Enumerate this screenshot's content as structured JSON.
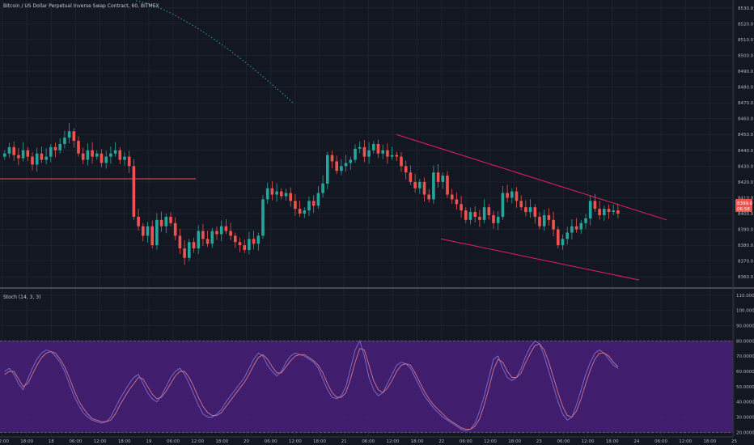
{
  "header": {
    "symbol_title": "Bitcoin / US Dollar Perpetual Inverse Swap Contract, 60, BITMEX"
  },
  "indicator": {
    "label": "Stoch (14, 3, 3)"
  },
  "price_badge": {
    "price": "8399.0",
    "countdown": "06:58",
    "color": "#ef5350"
  },
  "colors": {
    "bg": "#131722",
    "grid": "#1e222d",
    "up": "#26a69a",
    "down": "#ef5350",
    "trend": "#e91e63",
    "stoch_band": "#4a1e7a",
    "stoch_k": "#7e6fd1",
    "stoch_d": "#d07a8a",
    "dotted": "#26a69a"
  },
  "chart_data": [
    {
      "type": "candlestick",
      "title": "",
      "ylim": [
        8355,
        8535
      ],
      "y_ticks": [
        "8530.0",
        "8520.0",
        "8510.0",
        "8500.0",
        "8490.0",
        "8480.0",
        "8470.0",
        "8460.0",
        "8450.0",
        "8440.0",
        "8430.0",
        "8420.0",
        "8410.0",
        "8400.0",
        "8390.0",
        "8380.0",
        "8370.0",
        "8360.0"
      ],
      "x_labels": [
        "12:00",
        "18:00",
        "18",
        "06:00",
        "12:00",
        "18:00",
        "19",
        "06:00",
        "12:00",
        "18:00",
        "20",
        "06:00",
        "12:00",
        "18:00",
        "21",
        "06:00",
        "12:00",
        "18:00",
        "22",
        "06:00",
        "12:00",
        "18:00",
        "23",
        "06:00",
        "12:00",
        "18:00",
        "24",
        "06:00",
        "12:00",
        "18:00",
        "25"
      ],
      "closes": [
        8438,
        8442,
        8437,
        8435,
        8440,
        8436,
        8431,
        8438,
        8434,
        8436,
        8442,
        8440,
        8444,
        8448,
        8452,
        8446,
        8438,
        8434,
        8440,
        8436,
        8438,
        8432,
        8436,
        8438,
        8440,
        8434,
        8436,
        8430,
        8398,
        8392,
        8386,
        8392,
        8380,
        8396,
        8392,
        8398,
        8394,
        8386,
        8378,
        8372,
        8382,
        8378,
        8389,
        8384,
        8381,
        8389,
        8387,
        8392,
        8389,
        8386,
        8382,
        8380,
        8377,
        8384,
        8381,
        8386,
        8409,
        8416,
        8412,
        8414,
        8411,
        8413,
        8408,
        8403,
        8400,
        8402,
        8408,
        8405,
        8413,
        8419,
        8437,
        8433,
        8427,
        8430,
        8432,
        8434,
        8441,
        8442,
        8436,
        8440,
        8444,
        8438,
        8440,
        8436,
        8437,
        8436,
        8430,
        8426,
        8420,
        8416,
        8420,
        8412,
        8409,
        8426,
        8420,
        8424,
        8412,
        8409,
        8406,
        8402,
        8396,
        8401,
        8398,
        8396,
        8404,
        8399,
        8394,
        8398,
        8413,
        8410,
        8414,
        8408,
        8404,
        8401,
        8404,
        8398,
        8392,
        8399,
        8396,
        8390,
        8380,
        8384,
        8388,
        8392,
        8390,
        8394,
        8397,
        8408,
        8403,
        8399,
        8403,
        8401,
        8402,
        8400
      ]
    },
    {
      "type": "line",
      "title": "Stoch (14, 3, 3)",
      "ylim": [
        17,
        112
      ],
      "y_ticks": [
        "110.0000",
        "100.0000",
        "90.0000",
        "80.0000",
        "70.0000",
        "60.0000",
        "50.0000",
        "40.0000",
        "30.0000",
        "20.0000"
      ],
      "band": [
        20,
        80
      ],
      "series": [
        {
          "values": [
            60,
            62,
            58,
            52,
            48,
            55,
            62,
            68,
            72,
            74,
            73,
            70,
            66,
            60,
            52,
            44,
            38,
            33,
            30,
            28,
            27,
            26,
            27,
            30,
            36,
            42,
            47,
            52,
            56,
            58,
            52,
            46,
            42,
            40,
            44,
            50,
            56,
            60,
            62,
            58,
            52,
            45,
            38,
            32,
            30,
            30,
            32,
            35,
            40,
            44,
            48,
            52,
            56,
            62,
            68,
            72,
            70,
            64,
            60,
            57,
            60,
            66,
            70,
            72,
            71,
            70,
            68,
            66,
            62,
            55,
            48,
            43,
            42,
            44,
            50,
            62,
            74,
            80,
            70,
            56,
            48,
            44,
            46,
            52,
            58,
            64,
            66,
            65,
            62,
            56,
            50,
            44,
            40,
            36,
            33,
            30,
            28,
            26,
            24,
            22,
            21,
            22,
            26,
            34,
            44,
            56,
            68,
            70,
            62,
            56,
            54,
            56,
            62,
            70,
            76,
            80,
            78,
            70,
            60,
            50,
            40,
            32,
            28,
            30,
            38,
            48,
            58,
            66,
            72,
            74,
            72,
            68,
            64,
            62
          ]
        },
        {
          "values": [
            58,
            60,
            60,
            55,
            50,
            52,
            58,
            64,
            69,
            72,
            73,
            72,
            68,
            63,
            56,
            48,
            41,
            36,
            32,
            29,
            28,
            27,
            27,
            28,
            32,
            38,
            43,
            48,
            52,
            56,
            55,
            50,
            45,
            42,
            43,
            47,
            52,
            57,
            60,
            60,
            56,
            50,
            43,
            37,
            33,
            31,
            31,
            33,
            37,
            41,
            45,
            49,
            53,
            58,
            64,
            69,
            71,
            68,
            63,
            59,
            59,
            63,
            67,
            70,
            71,
            71,
            69,
            67,
            64,
            59,
            52,
            46,
            43,
            43,
            46,
            55,
            66,
            75,
            74,
            64,
            54,
            48,
            46,
            49,
            54,
            60,
            64,
            65,
            64,
            59,
            53,
            47,
            42,
            38,
            35,
            32,
            29,
            27,
            25,
            23,
            22,
            22,
            24,
            29,
            38,
            49,
            61,
            68,
            66,
            60,
            56,
            56,
            59,
            66,
            72,
            77,
            78,
            74,
            66,
            56,
            46,
            37,
            31,
            30,
            34,
            42,
            52,
            61,
            68,
            72,
            72,
            70,
            66,
            63
          ]
        }
      ]
    }
  ]
}
